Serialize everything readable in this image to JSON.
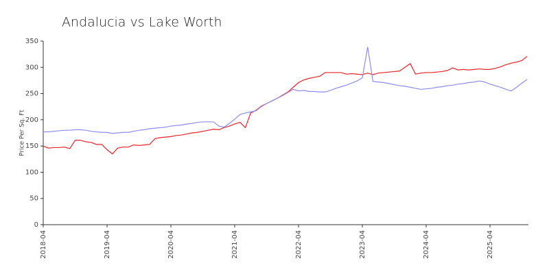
{
  "chart_data": {
    "type": "line",
    "title": "Andalucia vs Lake Worth",
    "ylabel": "Price Per Sq. Ft",
    "x": [
      "2018-04",
      "2018-05",
      "2018-06",
      "2018-07",
      "2018-08",
      "2018-09",
      "2018-10",
      "2018-11",
      "2018-12",
      "2019-01",
      "2019-02",
      "2019-03",
      "2019-04",
      "2019-05",
      "2019-06",
      "2019-07",
      "2019-08",
      "2019-09",
      "2019-10",
      "2019-11",
      "2019-12",
      "2020-01",
      "2020-02",
      "2020-03",
      "2020-04",
      "2020-05",
      "2020-06",
      "2020-07",
      "2020-08",
      "2020-09",
      "2020-10",
      "2020-11",
      "2020-12",
      "2021-01",
      "2021-02",
      "2021-03",
      "2021-04",
      "2021-05",
      "2021-06",
      "2021-07",
      "2021-08",
      "2021-09",
      "2021-10",
      "2021-11",
      "2021-12",
      "2022-01",
      "2022-02",
      "2022-03",
      "2022-04",
      "2022-05",
      "2022-06",
      "2022-07",
      "2022-08",
      "2022-09",
      "2022-10",
      "2022-11",
      "2022-12",
      "2023-01",
      "2023-02",
      "2023-03",
      "2023-04",
      "2023-05",
      "2023-06",
      "2023-07",
      "2023-08",
      "2023-09",
      "2023-10",
      "2023-11",
      "2023-12",
      "2024-01",
      "2024-02",
      "2024-03",
      "2024-04",
      "2024-05",
      "2024-06",
      "2024-07",
      "2024-08",
      "2024-09",
      "2024-10",
      "2024-11",
      "2024-12",
      "2025-01",
      "2025-02",
      "2025-03",
      "2025-04",
      "2025-05",
      "2025-06",
      "2025-07",
      "2025-08",
      "2025-09",
      "2025-10",
      "2025-11"
    ],
    "xticks": [
      "2018-04",
      "2019-04",
      "2020-04",
      "2021-04",
      "2022-04",
      "2023-04",
      "2024-04",
      "2025-04"
    ],
    "series": [
      {
        "color": "#e8232a",
        "values": [
          150,
          146,
          147,
          147,
          148,
          145,
          161,
          161,
          158,
          157,
          153,
          153,
          143,
          135,
          146,
          148,
          148,
          152,
          151,
          152,
          153,
          164,
          166,
          167,
          168,
          170,
          171,
          173,
          175,
          176,
          178,
          180,
          182,
          181,
          185,
          188,
          192,
          195,
          185,
          213,
          218,
          226,
          231,
          236,
          241,
          247,
          253,
          262,
          271,
          276,
          279,
          281,
          283,
          290,
          290,
          290,
          290,
          287,
          288,
          287,
          286,
          289,
          286,
          289,
          290,
          291,
          292,
          293,
          300,
          307,
          287,
          289,
          290,
          290,
          291,
          292,
          294,
          299,
          295,
          296,
          295,
          296,
          297,
          296,
          296,
          298,
          301,
          305,
          308,
          310,
          313,
          321
        ]
      },
      {
        "color": "#8c8cf0",
        "values": [
          177,
          177,
          178,
          179,
          180,
          180,
          181,
          181,
          180,
          178,
          177,
          176,
          176,
          174,
          175,
          176,
          176,
          178,
          180,
          181,
          183,
          184,
          185,
          186,
          188,
          189,
          190,
          192,
          193,
          195,
          196,
          196,
          196,
          188,
          186,
          193,
          201,
          210,
          213,
          215,
          217,
          225,
          231,
          236,
          241,
          246,
          252,
          258,
          255,
          256,
          254,
          254,
          253,
          253,
          256,
          260,
          263,
          266,
          270,
          274,
          280,
          339,
          273,
          272,
          271,
          269,
          267,
          265,
          264,
          262,
          260,
          258,
          259,
          260,
          262,
          263,
          265,
          266,
          268,
          269,
          271,
          272,
          274,
          272,
          268,
          265,
          262,
          258,
          255,
          262,
          270,
          277
        ]
      }
    ],
    "ylim": [
      0,
      350
    ],
    "yticks": [
      0,
      50,
      100,
      150,
      200,
      250,
      300,
      350
    ]
  }
}
